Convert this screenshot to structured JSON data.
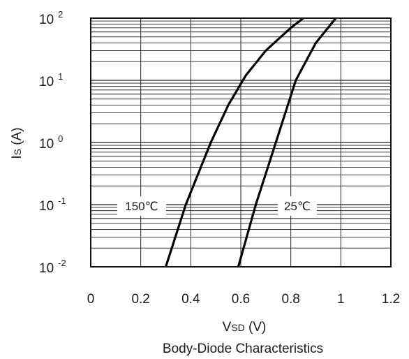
{
  "chart_data": {
    "type": "line",
    "title": "",
    "caption": "Body-Diode Characteristics",
    "xlabel": {
      "main": "V",
      "sub": "SD",
      "unit": "(V)"
    },
    "ylabel": {
      "main": "I",
      "sub": "S",
      "unit": "(A)"
    },
    "xlim": [
      0,
      1.2
    ],
    "ylim": [
      0.01,
      100
    ],
    "yscale": "log",
    "x_ticks": [
      "0",
      "0.2",
      "0.4",
      "0.6",
      "0.8",
      "1",
      "1.2"
    ],
    "y_ticks": [
      {
        "base": "10",
        "exp": "-2"
      },
      {
        "base": "10",
        "exp": "-1"
      },
      {
        "base": "10",
        "exp": "0"
      },
      {
        "base": "10",
        "exp": "1"
      },
      {
        "base": "10",
        "exp": "2"
      }
    ],
    "grid": true,
    "series": [
      {
        "name": "150℃",
        "x": [
          0.3,
          0.38,
          0.48,
          0.55,
          0.62,
          0.7,
          0.8,
          0.85
        ],
        "y": [
          0.01,
          0.1,
          1,
          4,
          12,
          30,
          70,
          100
        ]
      },
      {
        "name": "25℃",
        "x": [
          0.59,
          0.66,
          0.74,
          0.82,
          0.9,
          0.98
        ],
        "y": [
          0.01,
          0.1,
          1,
          10,
          40,
          100
        ]
      }
    ]
  }
}
